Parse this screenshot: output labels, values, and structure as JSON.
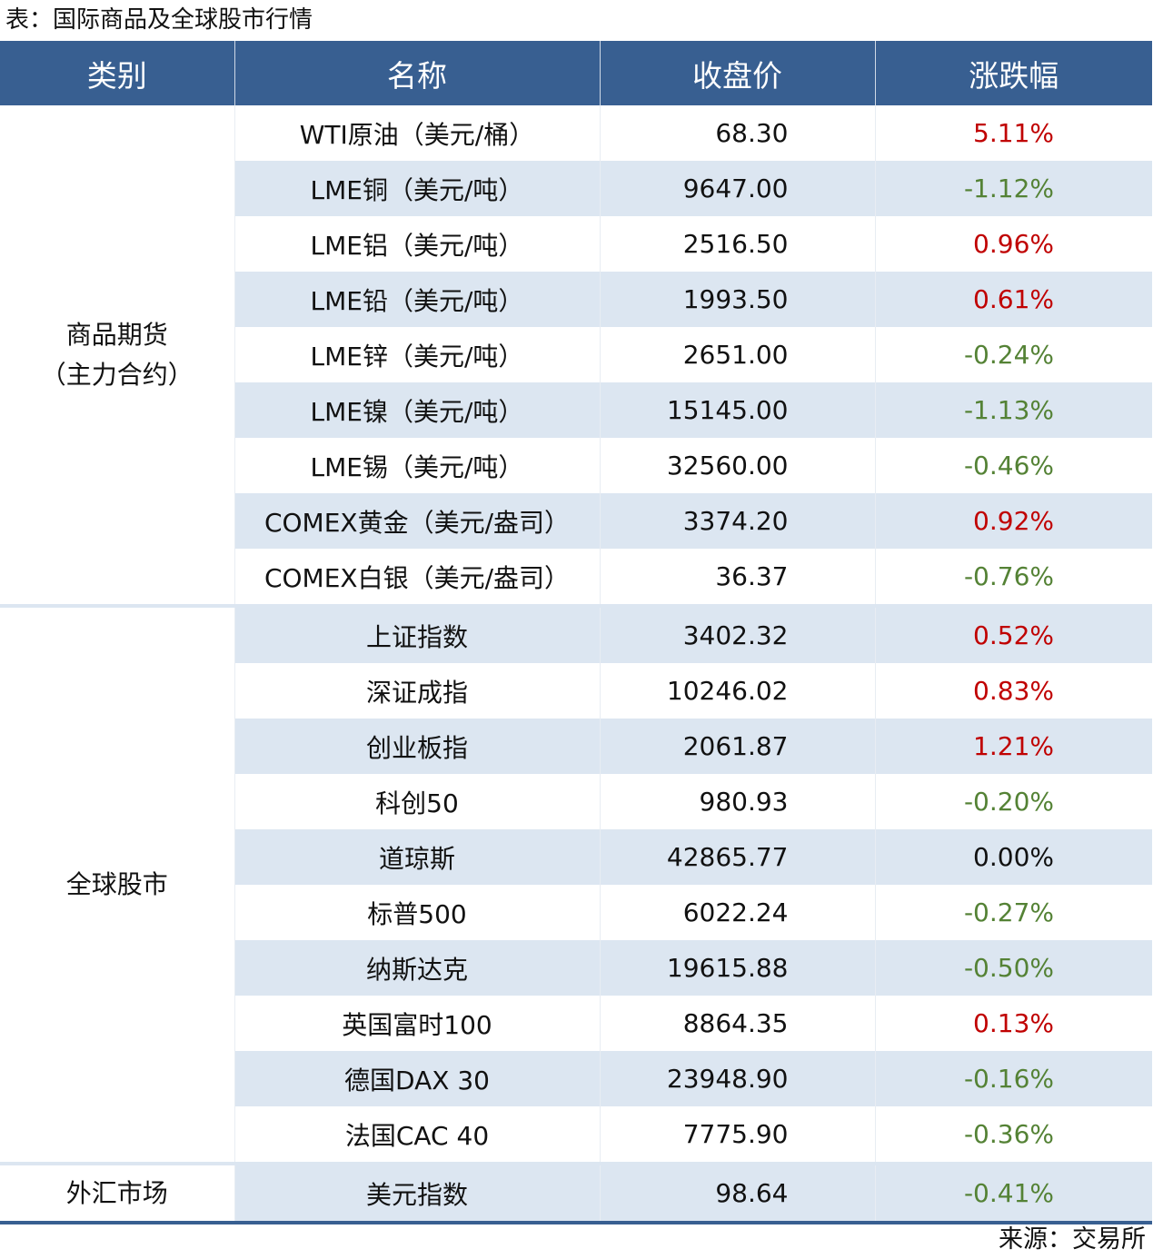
{
  "title": "表：国际商品及全球股市行情",
  "headers": [
    "类别",
    "名称",
    "收盘价",
    "涨跌幅"
  ],
  "groups": [
    {
      "category": "商品期货（主力合约）",
      "category_lines": [
        "商品期货",
        "（主力合约）"
      ],
      "rows": [
        {
          "name": "WTI原油（美元/桶）",
          "price": "68.30",
          "change": "5.11%",
          "dir": "up"
        },
        {
          "name": "LME铜（美元/吨）",
          "price": "9647.00",
          "change": "-1.12%",
          "dir": "down"
        },
        {
          "name": "LME铝（美元/吨）",
          "price": "2516.50",
          "change": "0.96%",
          "dir": "up"
        },
        {
          "name": "LME铅（美元/吨）",
          "price": "1993.50",
          "change": "0.61%",
          "dir": "up"
        },
        {
          "name": "LME锌（美元/吨）",
          "price": "2651.00",
          "change": "-0.24%",
          "dir": "down"
        },
        {
          "name": "LME镍（美元/吨）",
          "price": "15145.00",
          "change": "-1.13%",
          "dir": "down"
        },
        {
          "name": "LME锡（美元/吨）",
          "price": "32560.00",
          "change": "-0.46%",
          "dir": "down"
        },
        {
          "name": "COMEX黄金（美元/盎司）",
          "price": "3374.20",
          "change": "0.92%",
          "dir": "up"
        },
        {
          "name": "COMEX白银（美元/盎司）",
          "price": "36.37",
          "change": "-0.76%",
          "dir": "down"
        }
      ]
    },
    {
      "category": "全球股市",
      "category_lines": [
        "全球股市"
      ],
      "rows": [
        {
          "name": "上证指数",
          "price": "3402.32",
          "change": "0.52%",
          "dir": "up"
        },
        {
          "name": "深证成指",
          "price": "10246.02",
          "change": "0.83%",
          "dir": "up"
        },
        {
          "name": "创业板指",
          "price": "2061.87",
          "change": "1.21%",
          "dir": "up"
        },
        {
          "name": "科创50",
          "price": "980.93",
          "change": "-0.20%",
          "dir": "down"
        },
        {
          "name": "道琼斯",
          "price": "42865.77",
          "change": "0.00%",
          "dir": "flat"
        },
        {
          "name": "标普500",
          "price": "6022.24",
          "change": "-0.27%",
          "dir": "down"
        },
        {
          "name": "纳斯达克",
          "price": "19615.88",
          "change": "-0.50%",
          "dir": "down"
        },
        {
          "name": "英国富时100",
          "price": "8864.35",
          "change": "0.13%",
          "dir": "up"
        },
        {
          "name": "德国DAX 30",
          "price": "23948.90",
          "change": "-0.16%",
          "dir": "down"
        },
        {
          "name": "法国CAC 40",
          "price": "7775.90",
          "change": "-0.36%",
          "dir": "down"
        }
      ]
    },
    {
      "category": "外汇市场",
      "category_lines": [
        "外汇市场"
      ],
      "rows": [
        {
          "name": "美元指数",
          "price": "98.64",
          "change": "-0.41%",
          "dir": "down"
        }
      ]
    }
  ],
  "colors": {
    "header": "#385f91",
    "stripe": "#dce6f1",
    "up": "#c00000",
    "down": "#548235"
  },
  "source": "来源：交易所"
}
